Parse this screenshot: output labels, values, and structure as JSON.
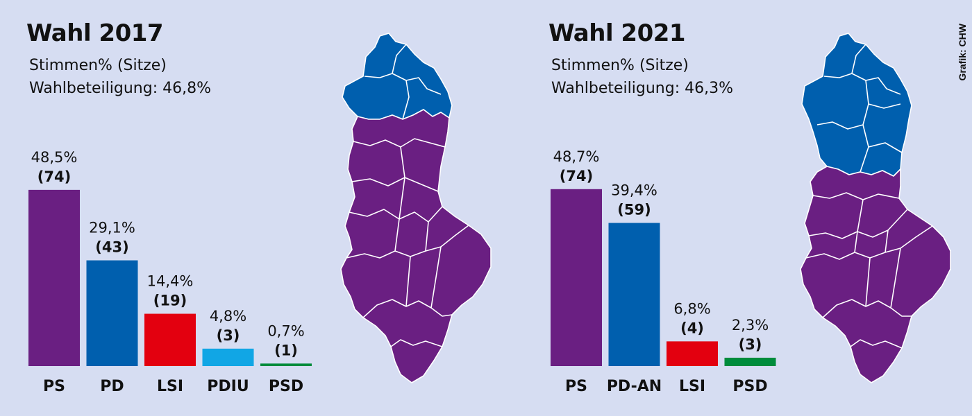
{
  "credit": "Grafik: CHW",
  "colors": {
    "PS": "#6a1f82",
    "PD": "#005fae",
    "LSI": "#e3000f",
    "PDIU": "#11a6e5",
    "PSD": "#008c3c",
    "map_border": "#ffffff"
  },
  "panels": [
    {
      "title": "Wahl 2017",
      "subtitle": "Stimmen% (Sitze)",
      "turnout": "Wahlbeteiligung: 46,8%",
      "map": {
        "north_region_winner": "PD",
        "rest_winner": "PS"
      }
    },
    {
      "title": "Wahl 2021",
      "subtitle": "Stimmen% (Sitze)",
      "turnout": "Wahlbeteiligung: 46,3%",
      "map": {
        "north_region_winner": "PD",
        "rest_winner": "PS"
      }
    }
  ],
  "chart_data": [
    {
      "type": "bar",
      "categories": [
        "PS",
        "PD",
        "LSI",
        "PDIU",
        "PSD"
      ],
      "values": [
        48.5,
        29.1,
        14.4,
        4.8,
        0.7
      ],
      "seats": [
        74,
        43,
        19,
        3,
        1
      ],
      "value_labels": [
        "48,5%",
        "29,1%",
        "14,4%",
        "4,8%",
        "0,7%"
      ],
      "seat_labels": [
        "(74)",
        "(43)",
        "(19)",
        "(3)",
        "(1)"
      ],
      "colors": [
        "#6a1f82",
        "#005fae",
        "#e3000f",
        "#11a6e5",
        "#008c3c"
      ],
      "ylim": [
        0,
        50
      ],
      "grid": false,
      "legend": "none"
    },
    {
      "type": "bar",
      "categories": [
        "PS",
        "PD-AN",
        "LSI",
        "PSD"
      ],
      "values": [
        48.7,
        39.4,
        6.8,
        2.3
      ],
      "seats": [
        74,
        59,
        4,
        3
      ],
      "value_labels": [
        "48,7%",
        "39,4%",
        "6,8%",
        "2,3%"
      ],
      "seat_labels": [
        "(74)",
        "(59)",
        "(4)",
        "(3)"
      ],
      "colors": [
        "#6a1f82",
        "#005fae",
        "#e3000f",
        "#008c3c"
      ],
      "ylim": [
        0,
        50
      ],
      "grid": false,
      "legend": "none"
    }
  ]
}
